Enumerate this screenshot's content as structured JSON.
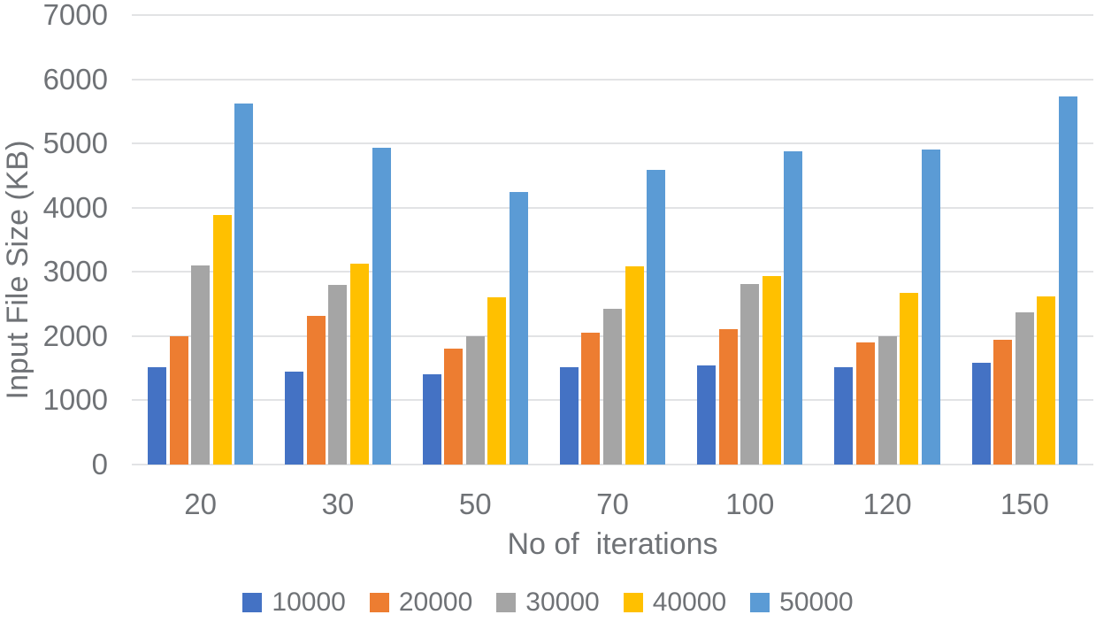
{
  "chart_data": {
    "type": "bar",
    "title": "",
    "xlabel": "No of  iterations",
    "ylabel": "Input File Size (KB)",
    "ylim": [
      0,
      7000
    ],
    "ytick_step": 1000,
    "yticks": [
      "0",
      "1000",
      "2000",
      "3000",
      "4000",
      "5000",
      "6000",
      "7000"
    ],
    "grid": true,
    "legend_position": "bottom",
    "categories": [
      "20",
      "30",
      "50",
      "70",
      "100",
      "120",
      "150"
    ],
    "series": [
      {
        "name": "10000",
        "color": "#4472C4",
        "values": [
          1520,
          1450,
          1410,
          1510,
          1540,
          1510,
          1590
        ]
      },
      {
        "name": "20000",
        "color": "#ED7D31",
        "values": [
          2000,
          2320,
          1810,
          2050,
          2110,
          1900,
          1940
        ]
      },
      {
        "name": "30000",
        "color": "#A5A5A5",
        "values": [
          3100,
          2800,
          2000,
          2420,
          2810,
          2000,
          2370
        ]
      },
      {
        "name": "40000",
        "color": "#FFC000",
        "values": [
          3880,
          3130,
          2600,
          3090,
          2940,
          2670,
          2620
        ]
      },
      {
        "name": "50000",
        "color": "#5B9BD5",
        "values": [
          5620,
          4930,
          4250,
          4590,
          4880,
          4900,
          5730
        ]
      }
    ],
    "text_color": "#6f7276",
    "gridline_color": "#e2e3e5",
    "background_color": "#ffffff"
  }
}
